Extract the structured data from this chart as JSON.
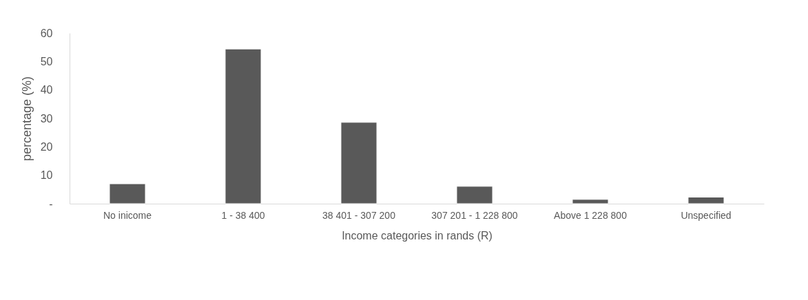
{
  "chart_data": {
    "type": "bar",
    "xlabel": "Income categories in rands (R)",
    "ylabel": "percentage (%)",
    "categories": [
      "No inicome",
      "1 - 38 400",
      "38 401 - 307 200",
      "307 201 - 1 228 800",
      "Above 1 228 800",
      "Unspecified"
    ],
    "values": [
      7.0,
      54.4,
      28.6,
      6.1,
      1.5,
      2.3
    ],
    "color": "#595959",
    "ylim": [
      0,
      60
    ],
    "yticks": [
      {
        "value": 0,
        "label": "-"
      },
      10,
      20,
      30,
      40,
      50,
      60
    ],
    "grid": false
  }
}
